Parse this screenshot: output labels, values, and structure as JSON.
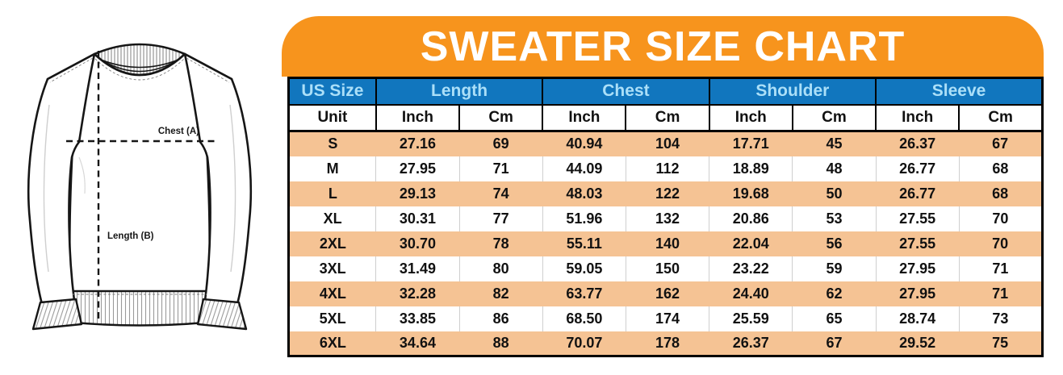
{
  "diagram": {
    "chest_label": "Chest (A)",
    "length_label": "Length (B)"
  },
  "chart_data": {
    "type": "table",
    "title": "SWEATER SIZE CHART",
    "group_headers": [
      "US Size",
      "Length",
      "Chest",
      "Shoulder",
      "Sleeve"
    ],
    "unit_row": [
      "Unit",
      "Inch",
      "Cm",
      "Inch",
      "Cm",
      "Inch",
      "Cm",
      "Inch",
      "Cm"
    ],
    "rows": [
      [
        "S",
        "27.16",
        "69",
        "40.94",
        "104",
        "17.71",
        "45",
        "26.37",
        "67"
      ],
      [
        "M",
        "27.95",
        "71",
        "44.09",
        "112",
        "18.89",
        "48",
        "26.77",
        "68"
      ],
      [
        "L",
        "29.13",
        "74",
        "48.03",
        "122",
        "19.68",
        "50",
        "26.77",
        "68"
      ],
      [
        "XL",
        "30.31",
        "77",
        "51.96",
        "132",
        "20.86",
        "53",
        "27.55",
        "70"
      ],
      [
        "2XL",
        "30.70",
        "78",
        "55.11",
        "140",
        "22.04",
        "56",
        "27.55",
        "70"
      ],
      [
        "3XL",
        "31.49",
        "80",
        "59.05",
        "150",
        "23.22",
        "59",
        "27.95",
        "71"
      ],
      [
        "4XL",
        "32.28",
        "82",
        "63.77",
        "162",
        "24.40",
        "62",
        "27.95",
        "71"
      ],
      [
        "5XL",
        "33.85",
        "86",
        "68.50",
        "174",
        "25.59",
        "65",
        "28.74",
        "73"
      ],
      [
        "6XL",
        "34.64",
        "88",
        "70.07",
        "178",
        "26.37",
        "67",
        "29.52",
        "75"
      ]
    ]
  },
  "colors": {
    "banner_orange": "#F7941D",
    "header_blue": "#1176BE",
    "header_text_blue": "#ABDFF8",
    "row_peach": "#F5C394",
    "border_black": "#000000",
    "text_black": "#111111"
  }
}
